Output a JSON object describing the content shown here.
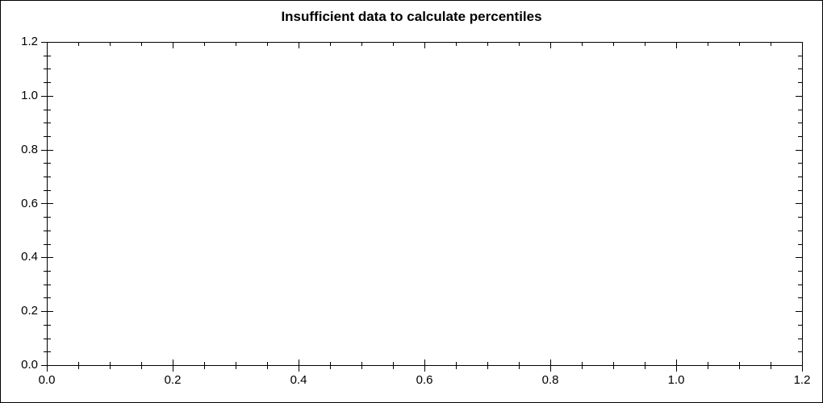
{
  "chart_data": {
    "type": "scatter",
    "title": "Insufficient data to calculate percentiles",
    "series": [],
    "xlabel": "",
    "ylabel": "",
    "xlim": [
      0.0,
      1.2
    ],
    "ylim": [
      0.0,
      1.2
    ],
    "x_major_ticks": [
      0.0,
      0.2,
      0.4,
      0.6,
      0.8,
      1.0,
      1.2
    ],
    "y_major_ticks": [
      0.0,
      0.2,
      0.4,
      0.6,
      0.8,
      1.0,
      1.2
    ],
    "x_tick_labels": [
      "0.0",
      "0.2",
      "0.4",
      "0.6",
      "0.8",
      "1.0",
      "1.2"
    ],
    "y_tick_labels": [
      "0.0",
      "0.2",
      "0.4",
      "0.6",
      "0.8",
      "1.0",
      "1.2"
    ],
    "minor_tick_step": 0.05,
    "grid": false,
    "legend": "none",
    "frame": "box-with-ticks-all-sides"
  },
  "colors": {
    "background": "#ffffff",
    "frame": "#000000",
    "text": "#000000"
  }
}
